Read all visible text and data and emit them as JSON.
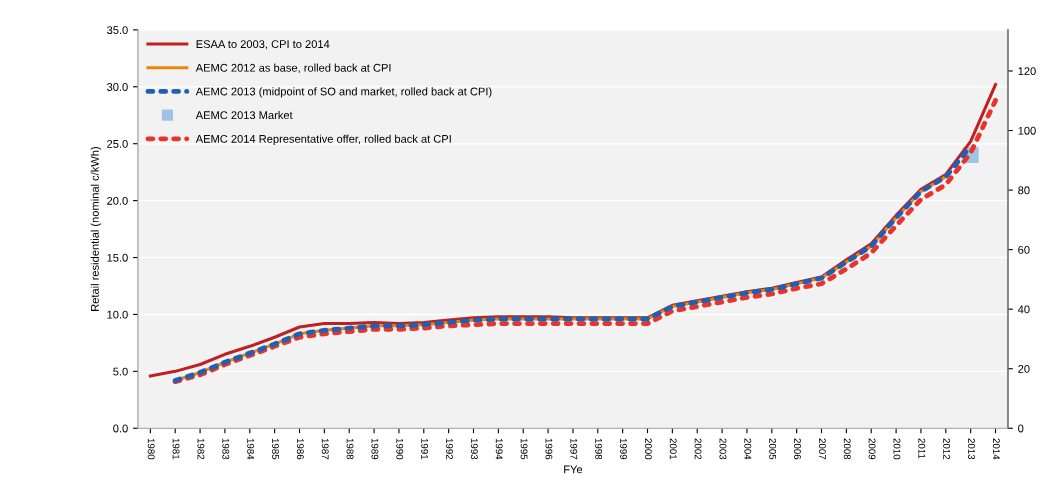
{
  "chart_data": {
    "type": "line",
    "xlabel": "FYe",
    "ylabel": "Retail residential (nominal c/kWh)",
    "categories": [
      "1980",
      "1981",
      "1982",
      "1983",
      "1984",
      "1985",
      "1986",
      "1987",
      "1988",
      "1989",
      "1990",
      "1991",
      "1992",
      "1993",
      "1994",
      "1995",
      "1996",
      "1997",
      "1998",
      "1999",
      "2000",
      "2001",
      "2002",
      "2003",
      "2004",
      "2005",
      "2006",
      "2007",
      "2008",
      "2009",
      "2010",
      "2011",
      "2012",
      "2013",
      "2014"
    ],
    "series": [
      {
        "name": "ESAA to 2003, CPI to 2014",
        "color": "#c0201f",
        "line_style": "solid",
        "values": [
          4.6,
          5.0,
          5.6,
          6.5,
          7.2,
          8.0,
          8.9,
          9.2,
          9.2,
          9.3,
          9.2,
          9.3,
          9.5,
          9.7,
          9.8,
          9.8,
          9.8,
          9.7,
          9.7,
          9.7,
          9.7,
          10.8,
          11.2,
          11.6,
          12.0,
          12.3,
          12.8,
          13.3,
          14.8,
          16.2,
          18.7,
          21.0,
          22.3,
          25.2,
          30.2
        ]
      },
      {
        "name": "AEMC 2012 as base, rolled back at CPI",
        "color": "#e8870e",
        "line_style": "solid",
        "values": [
          null,
          4.2,
          4.9,
          5.8,
          6.6,
          7.4,
          8.3,
          8.6,
          8.8,
          9.0,
          9.0,
          9.1,
          9.3,
          9.5,
          9.6,
          9.6,
          9.6,
          9.6,
          9.6,
          9.6,
          9.6,
          10.7,
          11.1,
          11.5,
          11.9,
          12.2,
          12.7,
          13.2,
          14.6,
          16.0,
          18.5,
          20.8,
          22.1,
          null,
          null
        ]
      },
      {
        "name": "AEMC 2013 (midpoint of SO and market, rolled back at CPI)",
        "color": "#1f5fb4",
        "line_style": "dotted",
        "values": [
          null,
          4.2,
          4.9,
          5.8,
          6.6,
          7.4,
          8.3,
          8.6,
          8.8,
          9.0,
          9.0,
          9.1,
          9.3,
          9.5,
          9.6,
          9.6,
          9.6,
          9.6,
          9.6,
          9.6,
          9.6,
          10.7,
          11.1,
          11.5,
          11.9,
          12.2,
          12.7,
          13.2,
          14.6,
          16.0,
          18.5,
          20.8,
          22.1,
          24.8,
          null
        ]
      },
      {
        "name": "AEMC 2013 Market",
        "type": "scatter",
        "marker": "square",
        "color": "#9dc3e6",
        "values": [
          null,
          null,
          null,
          null,
          null,
          null,
          null,
          null,
          null,
          null,
          null,
          null,
          null,
          null,
          null,
          null,
          null,
          null,
          null,
          null,
          null,
          null,
          null,
          null,
          null,
          null,
          null,
          null,
          null,
          null,
          null,
          null,
          null,
          24.0,
          null
        ]
      },
      {
        "name": "AEMC 2014 Representative offer, rolled back at CPI",
        "color": "#e8342a",
        "line_style": "dotted",
        "values": [
          null,
          4.1,
          4.7,
          5.6,
          6.4,
          7.2,
          8.0,
          8.3,
          8.5,
          8.7,
          8.7,
          8.8,
          9.0,
          9.1,
          9.2,
          9.2,
          9.2,
          9.2,
          9.2,
          9.2,
          9.2,
          10.3,
          10.7,
          11.1,
          11.5,
          11.8,
          12.3,
          12.7,
          14.0,
          15.4,
          17.8,
          20.1,
          21.4,
          24.2,
          28.8
        ]
      }
    ],
    "ylim": [
      0,
      35
    ],
    "yticks": [
      {
        "value": 0,
        "label": "0.0"
      },
      {
        "value": 5,
        "label": "5.0"
      },
      {
        "value": 10,
        "label": "10.0"
      },
      {
        "value": 15,
        "label": "15.0"
      },
      {
        "value": 20,
        "label": "20.0"
      },
      {
        "value": 25,
        "label": "25.0"
      },
      {
        "value": 30,
        "label": "30.0"
      },
      {
        "value": 35,
        "label": "35.0"
      }
    ],
    "y2lim": [
      0,
      133.8
    ],
    "y2ticks": [
      0,
      20,
      40,
      60,
      80,
      100,
      120
    ],
    "grid": "y",
    "legend": "top left"
  }
}
